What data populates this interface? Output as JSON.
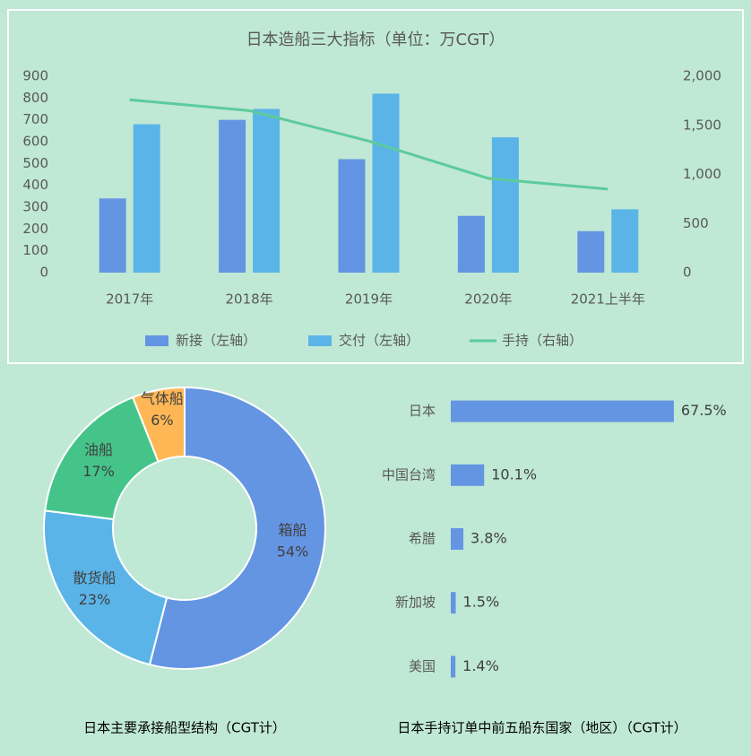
{
  "chart_data": [
    {
      "type": "bar",
      "title": "日本造船三大指标（单位：万CGT）",
      "categories": [
        "2017年",
        "2018年",
        "2019年",
        "2020年",
        "2021上半年"
      ],
      "series": [
        {
          "name": "新接（左轴）",
          "color": "#6495e3",
          "values": [
            340,
            700,
            520,
            260,
            190
          ]
        },
        {
          "name": "交付（左轴）",
          "color": "#5ab4e8",
          "values": [
            680,
            750,
            820,
            620,
            290
          ]
        },
        {
          "name": "手持（右轴）",
          "color": "#5ccb9b",
          "type": "line",
          "axis": "y2",
          "values": [
            1760,
            1650,
            1340,
            960,
            850
          ]
        }
      ],
      "ylim": [
        0,
        900
      ],
      "yticks": [
        0,
        100,
        200,
        300,
        400,
        500,
        600,
        700,
        800,
        900
      ],
      "y2lim": [
        0,
        2000
      ],
      "y2ticks": [
        0,
        500,
        {
          "value": 1000,
          "label": "1,000"
        },
        {
          "value": 1500,
          "label": "1,500"
        },
        {
          "value": 2000,
          "label": "2,000"
        }
      ],
      "legend": "bottom"
    },
    {
      "type": "donut",
      "title": "日本主要承接船型结构（CGT计）",
      "categories": [
        "箱船",
        "散货船",
        "油船",
        "气体船"
      ],
      "values": [
        54,
        23,
        17,
        6
      ],
      "value_labels": [
        "54%",
        "23%",
        "17%",
        "6%"
      ],
      "colors": [
        "#6495e3",
        "#5ab4e8",
        "#45c48a",
        "#ffb755"
      ]
    },
    {
      "type": "hbar",
      "title": "日本手持订单中前五船东国家（地区）（CGT计）",
      "categories": [
        "日本",
        "中国台湾",
        "希腊",
        "新加坡",
        "美国"
      ],
      "values": [
        67.5,
        10.1,
        3.8,
        1.5,
        1.4
      ],
      "value_labels": [
        "67.5%",
        "10.1%",
        "3.8%",
        "1.5%",
        "1.4%"
      ],
      "color": "#6495e3",
      "xlim": [
        0,
        80
      ]
    }
  ]
}
